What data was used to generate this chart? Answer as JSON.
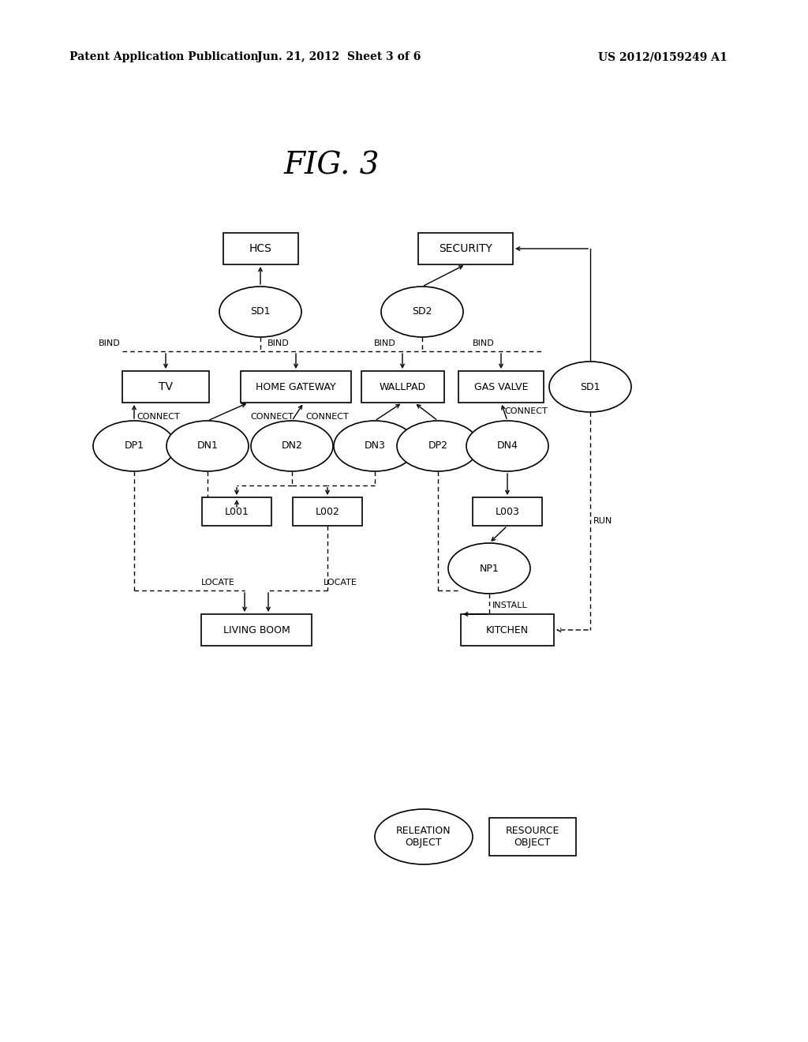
{
  "title": "FIG. 3",
  "header_left": "Patent Application Publication",
  "header_center": "Jun. 21, 2012  Sheet 3 of 6",
  "header_right": "US 2012/0159249 A1",
  "background_color": "#ffffff"
}
